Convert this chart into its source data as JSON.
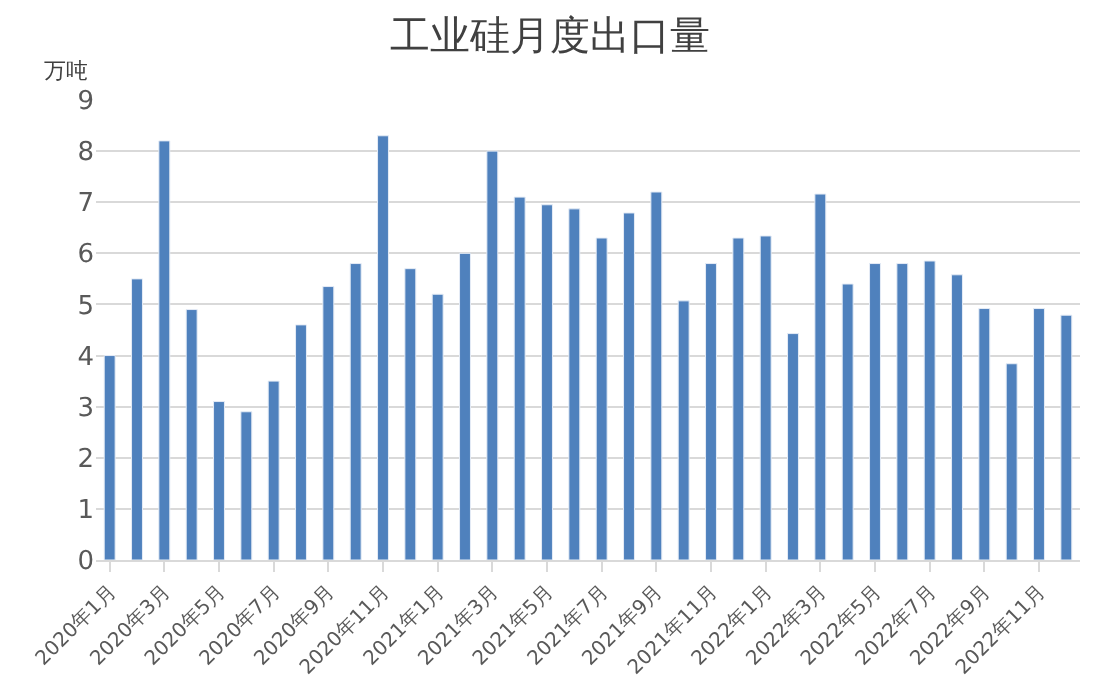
{
  "chart_data": {
    "type": "bar",
    "title": "工业硅月度出口量",
    "ylabel": "万吨",
    "categories": [
      "2020年1月",
      null,
      "2020年3月",
      null,
      "2020年5月",
      null,
      "2020年7月",
      null,
      "2020年9月",
      null,
      "2020年11月",
      null,
      "2021年1月",
      null,
      "2021年3月",
      null,
      "2021年5月",
      null,
      "2021年7月",
      null,
      "2021年9月",
      null,
      "2021年11月",
      null,
      "2022年1月",
      null,
      "2022年3月",
      null,
      "2022年5月",
      null,
      "2022年7月",
      null,
      "2022年9月",
      null,
      "2022年11月",
      null
    ],
    "values": [
      4.0,
      5.5,
      8.2,
      4.9,
      3.1,
      2.9,
      3.5,
      4.6,
      5.35,
      5.8,
      8.3,
      5.7,
      5.2,
      6.0,
      8.0,
      7.1,
      6.95,
      6.87,
      6.3,
      6.79,
      7.2,
      5.07,
      5.8,
      6.3,
      6.34,
      4.43,
      7.16,
      5.4,
      5.8,
      5.8,
      5.85,
      5.58,
      4.92,
      3.84,
      4.92,
      4.79
    ],
    "color": "#4f81bd",
    "ylim": [
      0,
      9
    ],
    "yticks": [
      0,
      1,
      2,
      3,
      4,
      5,
      6,
      7,
      8,
      9
    ],
    "grid": "y"
  }
}
